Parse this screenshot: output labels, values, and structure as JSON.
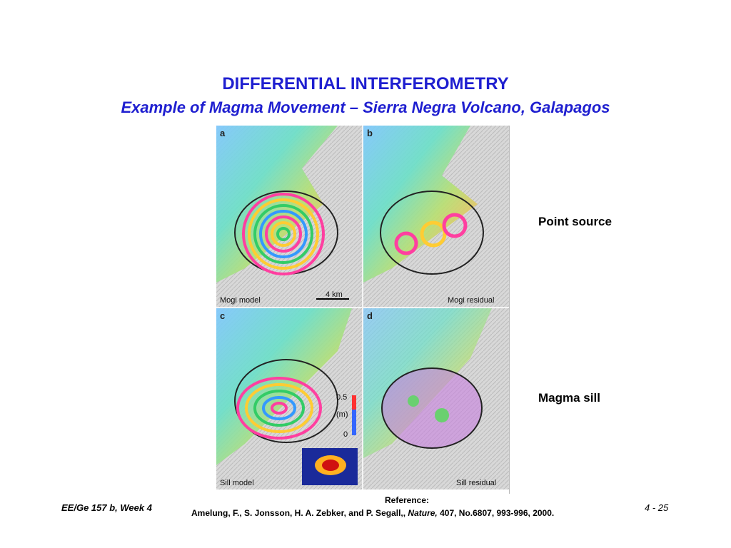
{
  "title": "DIFFERENTIAL INTERFEROMETRY",
  "subtitle": "Example of Magma Movement – Sierra Negra Volcano, Galapagos",
  "figure": {
    "panels": [
      {
        "letter": "a",
        "caption": "Mogi model"
      },
      {
        "letter": "b",
        "caption": "Mogi residual"
      },
      {
        "letter": "c",
        "caption": "Sill model"
      },
      {
        "letter": "d",
        "caption": "Sill residual"
      }
    ],
    "scale_bar": "4 km",
    "colorbar": {
      "max": "0.5",
      "unit": "(m)",
      "min": "0"
    }
  },
  "labels": {
    "point_source": "Point source",
    "magma_sill": "Magma sill"
  },
  "footer": {
    "course": "EE/Ge 157 b, Week 4",
    "page": "4 - 25",
    "reference_heading": "Reference:",
    "reference_authors": "Amelung, F., S. Jonsson, H. A. Zebker, and P. Segall,,",
    "reference_journal": "Nature,",
    "reference_details": "407, No.6807, 993-996, 2000."
  },
  "colors": {
    "title": "#1f1fd0",
    "text": "#000000"
  }
}
